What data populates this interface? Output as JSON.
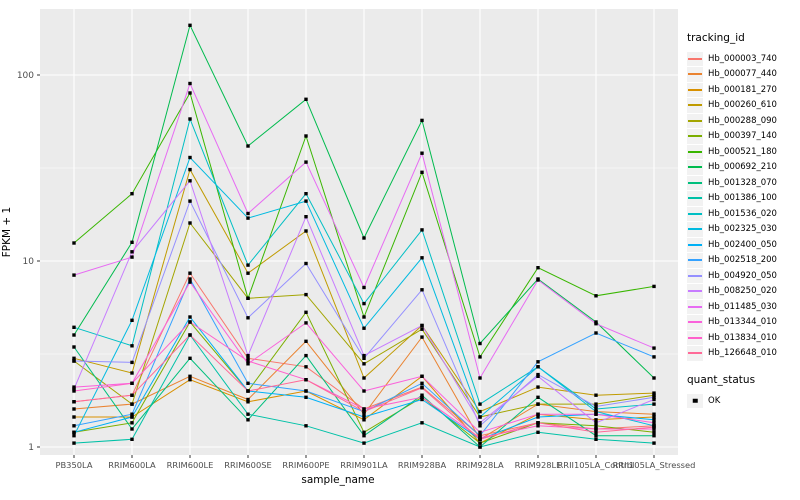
{
  "chart_data": {
    "type": "line",
    "title": "",
    "xlabel": "sample_name",
    "ylabel": "FPKM + 1",
    "y_scale": "log10",
    "y_ticks": [
      1,
      10,
      100
    ],
    "y_minor_ticks": [
      3.1623,
      31.623
    ],
    "ylim": [
      0.9,
      230
    ],
    "grid": true,
    "panel_bg": "#EBEBEB",
    "grid_color": "#FFFFFF",
    "point_shape": "filled-square",
    "point_color": "#000000",
    "categories": [
      "PB350LA",
      "RRIM600LA",
      "RRIM600LE",
      "RRIM600SE",
      "RRIM600PE",
      "RRIM901LA",
      "RRIM928BA",
      "RRIM928LA",
      "RRIM928LE",
      "RRII105LA_Control",
      "RRII105LA_Stressed"
    ],
    "series": [
      {
        "name": "Hb_000003_740",
        "color": "#F8766D",
        "values": [
          1.75,
          1.9,
          8.6,
          3.0,
          2.7,
          1.6,
          2.1,
          1.15,
          1.35,
          1.25,
          1.3
        ]
      },
      {
        "name": "Hb_000077_440",
        "color": "#EA8331",
        "values": [
          1.6,
          1.7,
          2.4,
          1.8,
          3.7,
          1.5,
          3.9,
          1.1,
          1.7,
          1.55,
          1.5
        ]
      },
      {
        "name": "Hb_000181_270",
        "color": "#D89000",
        "values": [
          1.45,
          1.45,
          2.3,
          1.75,
          2.0,
          1.4,
          2.4,
          1.05,
          1.5,
          1.4,
          1.45
        ]
      },
      {
        "name": "Hb_000260_610",
        "color": "#C09B00",
        "values": [
          3.0,
          2.5,
          31,
          8.6,
          14.5,
          2.35,
          4.5,
          1.55,
          2.1,
          1.9,
          1.95
        ]
      },
      {
        "name": "Hb_000288_090",
        "color": "#A3A500",
        "values": [
          2.9,
          1.7,
          16,
          6.3,
          6.6,
          2.8,
          4.3,
          1.45,
          1.7,
          1.7,
          1.9
        ]
      },
      {
        "name": "Hb_000397_140",
        "color": "#7CAE00",
        "values": [
          1.2,
          1.35,
          4.7,
          2.0,
          5.3,
          1.2,
          1.85,
          1.05,
          1.35,
          1.3,
          1.2
        ]
      },
      {
        "name": "Hb_000521_180",
        "color": "#39B600",
        "values": [
          12.5,
          23,
          80,
          6.3,
          47,
          5.0,
          30,
          3.05,
          9.2,
          6.5,
          7.3
        ]
      },
      {
        "name": "Hb_000692_210",
        "color": "#00BB4E",
        "values": [
          4.0,
          12.6,
          185,
          41.5,
          74,
          13.3,
          57,
          3.6,
          8.0,
          4.7,
          2.35
        ]
      },
      {
        "name": "Hb_001328_070",
        "color": "#00BF7D",
        "values": [
          3.45,
          1.25,
          3.0,
          1.4,
          3.1,
          1.15,
          1.9,
          1.0,
          1.85,
          1.15,
          1.15
        ]
      },
      {
        "name": "Hb_001386_100",
        "color": "#00C1A7",
        "values": [
          1.05,
          1.1,
          4.0,
          1.5,
          1.3,
          1.05,
          1.35,
          1.0,
          1.2,
          1.1,
          1.05
        ]
      },
      {
        "name": "Hb_001536_020",
        "color": "#00BFC4",
        "values": [
          4.4,
          3.5,
          58,
          9.5,
          23,
          5.9,
          14.7,
          1.7,
          2.7,
          1.6,
          1.7
        ]
      },
      {
        "name": "Hb_002325_030",
        "color": "#00BAE0",
        "values": [
          1.15,
          4.8,
          36,
          17,
          21,
          4.35,
          10.4,
          1.45,
          2.7,
          1.55,
          1.3
        ]
      },
      {
        "name": "Hb_002400_050",
        "color": "#00B0F6",
        "values": [
          1.2,
          1.45,
          5.0,
          2.0,
          1.85,
          1.45,
          1.8,
          1.1,
          1.45,
          1.5,
          1.4
        ]
      },
      {
        "name": "Hb_002518_200",
        "color": "#35A2FF",
        "values": [
          1.3,
          1.5,
          8.0,
          2.2,
          2.0,
          1.55,
          2.2,
          1.15,
          2.87,
          4.1,
          3.05
        ]
      },
      {
        "name": "Hb_004920_050",
        "color": "#9590FF",
        "values": [
          2.9,
          2.85,
          21,
          4.95,
          9.7,
          3.0,
          7.0,
          1.3,
          2.45,
          1.65,
          1.85
        ]
      },
      {
        "name": "Hb_008250_020",
        "color": "#C77CFF",
        "values": [
          2.05,
          11.2,
          27,
          3.1,
          17.3,
          3.1,
          4.5,
          1.35,
          2.4,
          1.35,
          1.8
        ]
      },
      {
        "name": "Hb_011485_030",
        "color": "#E76BF3",
        "values": [
          8.4,
          10.5,
          90,
          18,
          34,
          7.2,
          38,
          2.35,
          7.9,
          4.6,
          3.4
        ]
      },
      {
        "name": "Hb_013344_010",
        "color": "#FA62DB",
        "values": [
          2.1,
          2.2,
          7.7,
          2.8,
          4.65,
          2.0,
          2.4,
          1.2,
          1.5,
          1.5,
          1.35
        ]
      },
      {
        "name": "Hb_013834_010",
        "color": "#FF61CC",
        "values": [
          2.0,
          2.2,
          4.7,
          2.9,
          2.3,
          1.6,
          1.85,
          1.12,
          1.3,
          1.25,
          1.25
        ]
      },
      {
        "name": "Hb_126648_010",
        "color": "#FF6A98",
        "values": [
          1.75,
          1.9,
          4.0,
          2.0,
          2.3,
          1.55,
          2.08,
          1.1,
          1.35,
          1.2,
          1.28
        ]
      }
    ],
    "legend_position": "right"
  },
  "legend": {
    "tracking_title": "tracking_id",
    "quant_title": "quant_status",
    "quant_items": [
      {
        "label": "OK",
        "shape": "filled-square",
        "color": "#000000"
      }
    ]
  },
  "axes": {
    "xlabel": "sample_name",
    "ylabel": "FPKM + 1"
  }
}
